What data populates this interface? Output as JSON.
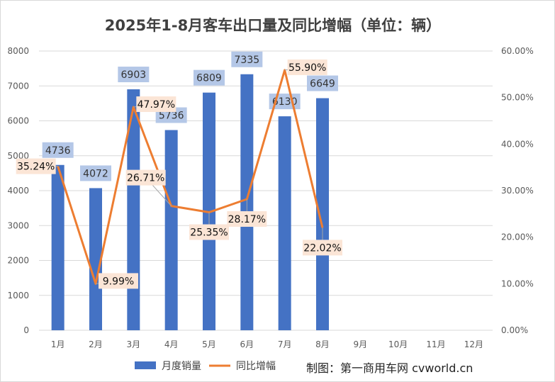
{
  "chart_data": {
    "type": "bar",
    "title": "2025年1-8月客车出口量及同比增幅（单位：辆）",
    "categories": [
      "1月",
      "2月",
      "3月",
      "4月",
      "5月",
      "6月",
      "7月",
      "8月",
      "9月",
      "10月",
      "11月",
      "12月"
    ],
    "series": [
      {
        "name": "月度销量",
        "type": "bar",
        "axis": "left",
        "color": "#4472C4",
        "values": [
          4736,
          4072,
          6903,
          5736,
          6809,
          7335,
          6130,
          6649,
          null,
          null,
          null,
          null
        ]
      },
      {
        "name": "同比增幅",
        "type": "line",
        "axis": "right",
        "color": "#ED7D31",
        "values": [
          35.24,
          9.99,
          47.97,
          26.71,
          25.35,
          28.17,
          55.9,
          22.02,
          null,
          null,
          null,
          null
        ]
      }
    ],
    "bar_labels": [
      "4736",
      "4072",
      "6903",
      "5736",
      "6809",
      "7335",
      "6130",
      "6649"
    ],
    "line_labels": [
      "35.24%",
      "9.99%",
      "47.97%",
      "26.71%",
      "25.35%",
      "28.17%",
      "55.90%",
      "22.02%"
    ],
    "y_left": {
      "min": 0,
      "max": 8000,
      "ticks": [
        "0",
        "1000",
        "2000",
        "3000",
        "4000",
        "5000",
        "6000",
        "7000",
        "8000"
      ]
    },
    "y_right": {
      "min": 0,
      "max": 60,
      "ticks": [
        "0.00%",
        "10.00%",
        "20.00%",
        "30.00%",
        "40.00%",
        "50.00%",
        "60.00%"
      ]
    },
    "grid": true,
    "legend_position": "bottom"
  },
  "credit": "制图：第一商用车网 cvworld.cn"
}
